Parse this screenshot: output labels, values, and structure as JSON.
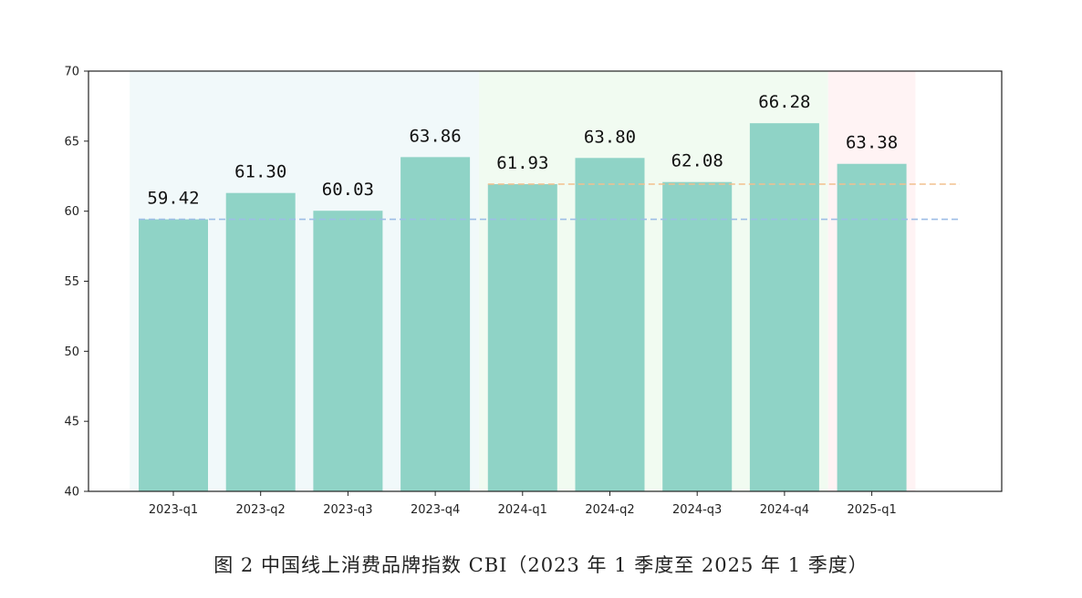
{
  "caption": "图 2 中国线上消费品牌指数 CBI（2023 年 1 季度至 2025 年 1 季度）",
  "chart_data": {
    "type": "bar",
    "categories": [
      "2023-q1",
      "2023-q2",
      "2023-q3",
      "2023-q4",
      "2024-q1",
      "2024-q2",
      "2024-q3",
      "2024-q4",
      "2025-q1"
    ],
    "values": [
      59.42,
      61.3,
      60.03,
      63.86,
      61.93,
      63.8,
      62.08,
      66.28,
      63.38
    ],
    "value_labels": [
      "59.42",
      "61.30",
      "60.03",
      "63.86",
      "61.93",
      "63.80",
      "62.08",
      "66.28",
      "63.38"
    ],
    "ylim": [
      40,
      70
    ],
    "yticks": [
      40,
      45,
      50,
      55,
      60,
      65,
      70
    ],
    "bar_color": "#8fd3c6",
    "year_bands": [
      {
        "from": 0,
        "to": 3,
        "color": "#f1f9fa"
      },
      {
        "from": 4,
        "to": 7,
        "color": "#f1fbf1"
      },
      {
        "from": 8,
        "to": 8,
        "color": "#fff3f4"
      }
    ],
    "reference_lines": [
      {
        "value": 59.42,
        "from": 0,
        "color": "#9dbde6"
      },
      {
        "value": 61.93,
        "from": 4,
        "color": "#f2c08e"
      }
    ],
    "grid": false
  }
}
